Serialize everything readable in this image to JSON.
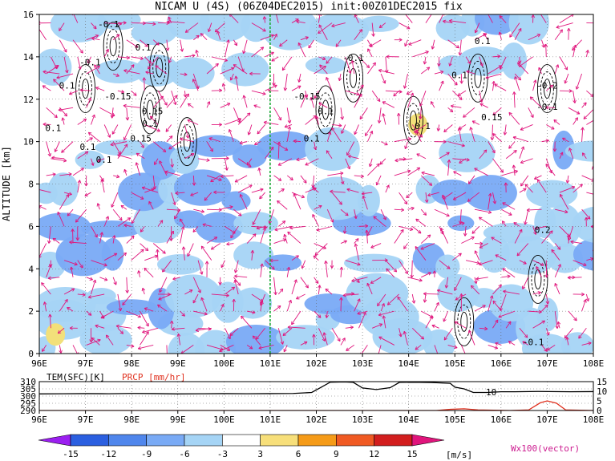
{
  "title": "NICAM U (4S) (06Z04DEC2015) init:00Z01DEC2015 fix",
  "chart_data": [
    {
      "type": "heatmap",
      "name": "zonal-wind-cross-section",
      "ylabel": "ALTITUDE [km]",
      "xlim": [
        96,
        108
      ],
      "ylim": [
        0,
        16
      ],
      "x_ticks": [
        "96E",
        "97E",
        "98E",
        "99E",
        "100E",
        "101E",
        "102E",
        "103E",
        "104E",
        "105E",
        "106E",
        "107E",
        "108E"
      ],
      "y_ticks": [
        "0",
        "2",
        "4",
        "6",
        "8",
        "10",
        "12",
        "14",
        "16"
      ],
      "grid": true,
      "marker_longitude": 101.0,
      "contour_labels": [
        {
          "text": "-0.1",
          "x": 97.5,
          "y": 15.4
        },
        {
          "text": "-0.1",
          "x": 97.1,
          "y": 13.6
        },
        {
          "text": "0.1",
          "x": 96.6,
          "y": 12.5
        },
        {
          "text": "-0.15",
          "x": 97.7,
          "y": 12.0
        },
        {
          "text": "0.1",
          "x": 98.25,
          "y": 14.3
        },
        {
          "text": "0.15",
          "x": 98.45,
          "y": 11.3
        },
        {
          "text": "0.1",
          "x": 98.4,
          "y": 10.7
        },
        {
          "text": "0.15",
          "x": 98.2,
          "y": 10.0
        },
        {
          "text": "0.1",
          "x": 96.3,
          "y": 10.5
        },
        {
          "text": "0.1",
          "x": 97.05,
          "y": 9.6
        },
        {
          "text": "0.1",
          "x": 97.4,
          "y": 9.0
        },
        {
          "text": "-0.1",
          "x": 102.8,
          "y": 13.8
        },
        {
          "text": "-0.15",
          "x": 101.8,
          "y": 12.0
        },
        {
          "text": "0.1",
          "x": 102.2,
          "y": 11.3
        },
        {
          "text": "0.1",
          "x": 101.9,
          "y": 10.0
        },
        {
          "text": "0.1",
          "x": 104.3,
          "y": 10.6
        },
        {
          "text": "0.1",
          "x": 105.6,
          "y": 14.6
        },
        {
          "text": "0.1",
          "x": 105.1,
          "y": 13.0
        },
        {
          "text": "0.15",
          "x": 105.8,
          "y": 11.0
        },
        {
          "text": "-0.2",
          "x": 107.0,
          "y": 12.5
        },
        {
          "text": "-0.1",
          "x": 107.0,
          "y": 11.5
        },
        {
          "text": "0.2",
          "x": 106.9,
          "y": 5.7
        },
        {
          "text": "-0.1",
          "x": 106.7,
          "y": 0.4
        }
      ],
      "positive_patches": [
        {
          "x": 104.2,
          "y": 10.8,
          "value": 4,
          "color": "#f2e07a"
        },
        {
          "x": 96.35,
          "y": 0.9,
          "value": 4,
          "color": "#f2e07a"
        }
      ],
      "negative_band_altitudes_km": [
        0.5,
        1.5,
        2.5,
        4.5,
        6.0,
        7.5,
        9.5,
        13.5,
        15.5
      ]
    },
    {
      "type": "line",
      "name": "surface-series",
      "labels": {
        "tem": "TEM(SFC)[K]",
        "prcp": "PRCP [mm/hr]"
      },
      "left_ticks": [
        "310",
        "305",
        "300",
        "295",
        "290"
      ],
      "right_ticks": [
        "15",
        "10",
        "5",
        "0"
      ],
      "left_ylim": [
        290,
        310
      ],
      "right_ylim": [
        0,
        15
      ],
      "annotation": "10",
      "x_ticks": [
        "96E",
        "97E",
        "98E",
        "99E",
        "100E",
        "101E",
        "102E",
        "103E",
        "104E",
        "105E",
        "106E",
        "107E",
        "108E"
      ],
      "series": [
        {
          "name": "TEM(SFC)[K]",
          "color": "#000000",
          "x": [
            96.0,
            96.5,
            97.0,
            97.5,
            98.0,
            98.5,
            99.0,
            99.5,
            100.0,
            100.5,
            101.0,
            101.5,
            101.9,
            102.1,
            102.3,
            102.6,
            102.8,
            103.0,
            103.3,
            103.6,
            103.8,
            104.1,
            104.5,
            104.9,
            105.0,
            105.2,
            105.4,
            105.7,
            106.0,
            106.3,
            106.8,
            107.5,
            108.0
          ],
          "y": [
            301.5,
            301.6,
            301.7,
            301.6,
            301.8,
            301.7,
            301.5,
            301.6,
            301.7,
            301.6,
            301.7,
            301.8,
            302.5,
            306.0,
            309.6,
            309.8,
            309.5,
            305.6,
            304.5,
            305.8,
            309.5,
            309.6,
            309.4,
            308.8,
            306.2,
            305.0,
            302.5,
            302.5,
            303.0,
            303.0,
            303.2,
            303.0,
            303.1
          ]
        },
        {
          "name": "PRCP [mm/hr]",
          "color": "#e0301e",
          "x": [
            96.0,
            104.6,
            104.9,
            105.2,
            105.5,
            106.2,
            106.6,
            106.85,
            107.0,
            107.2,
            107.4,
            108.0
          ],
          "y": [
            0.0,
            0.0,
            0.6,
            0.9,
            0.3,
            0.0,
            0.3,
            4.0,
            5.0,
            3.8,
            0.3,
            0.0
          ]
        }
      ]
    }
  ],
  "colorbar": {
    "levels": [
      "-15",
      "-12",
      "-9",
      "-6",
      "-3",
      "3",
      "6",
      "9",
      "12",
      "15"
    ],
    "unit": "[m/s]",
    "colors": [
      "#9b1ff0",
      "#2b5fe0",
      "#4f86ec",
      "#79aaf5",
      "#a5d4f5",
      "#ffffff",
      "#f7df7a",
      "#f59b18",
      "#f05a23",
      "#d21e1e",
      "#a5001b"
    ]
  },
  "vector_label": "Wx100(vector)",
  "colors": {
    "vector": "#e0157c",
    "marker_line": "#1fae3a",
    "grid": "#666666"
  }
}
